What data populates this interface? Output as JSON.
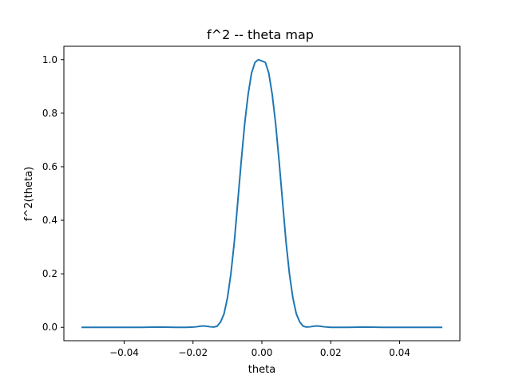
{
  "chart_data": {
    "type": "line",
    "title": "f^2 -- theta map",
    "xlabel": "theta",
    "ylabel": "f^2(theta)",
    "xlim": [
      -0.0575,
      0.0575
    ],
    "ylim": [
      -0.05,
      1.05
    ],
    "grid": false,
    "xticks": [
      -0.04,
      -0.02,
      0.0,
      0.02,
      0.04
    ],
    "xtick_labels": [
      "−0.04",
      "−0.02",
      "0.00",
      "0.02",
      "0.04"
    ],
    "yticks": [
      0.0,
      0.2,
      0.4,
      0.6,
      0.8,
      1.0
    ],
    "ytick_labels": [
      "0.0",
      "0.2",
      "0.4",
      "0.6",
      "0.8",
      "1.0"
    ],
    "series": [
      {
        "color": "#1f77b4",
        "x": [
          -0.0524,
          -0.045,
          -0.04,
          -0.035,
          -0.03,
          -0.025,
          -0.022,
          -0.02,
          -0.019,
          -0.018,
          -0.017,
          -0.016,
          -0.015,
          -0.014,
          -0.013,
          -0.012,
          -0.011,
          -0.01,
          -0.009,
          -0.008,
          -0.007,
          -0.006,
          -0.005,
          -0.004,
          -0.003,
          -0.002,
          -0.001,
          0.0,
          0.001,
          0.002,
          0.003,
          0.004,
          0.005,
          0.006,
          0.007,
          0.008,
          0.009,
          0.01,
          0.011,
          0.012,
          0.013,
          0.014,
          0.015,
          0.016,
          0.017,
          0.018,
          0.019,
          0.02,
          0.022,
          0.025,
          0.03,
          0.035,
          0.04,
          0.045,
          0.0524
        ],
        "y": [
          0.0,
          0.0,
          0.0,
          0.0,
          0.001,
          0.0,
          0.0,
          0.001,
          0.002,
          0.004,
          0.005,
          0.004,
          0.002,
          0.001,
          0.004,
          0.02,
          0.05,
          0.11,
          0.2,
          0.32,
          0.47,
          0.62,
          0.76,
          0.87,
          0.95,
          0.99,
          1.0,
          0.995,
          0.99,
          0.95,
          0.87,
          0.76,
          0.62,
          0.47,
          0.32,
          0.2,
          0.11,
          0.05,
          0.02,
          0.004,
          0.001,
          0.002,
          0.004,
          0.005,
          0.004,
          0.002,
          0.001,
          0.0,
          0.0,
          0.0,
          0.001,
          0.0,
          0.0,
          0.0,
          0.0
        ]
      }
    ]
  }
}
